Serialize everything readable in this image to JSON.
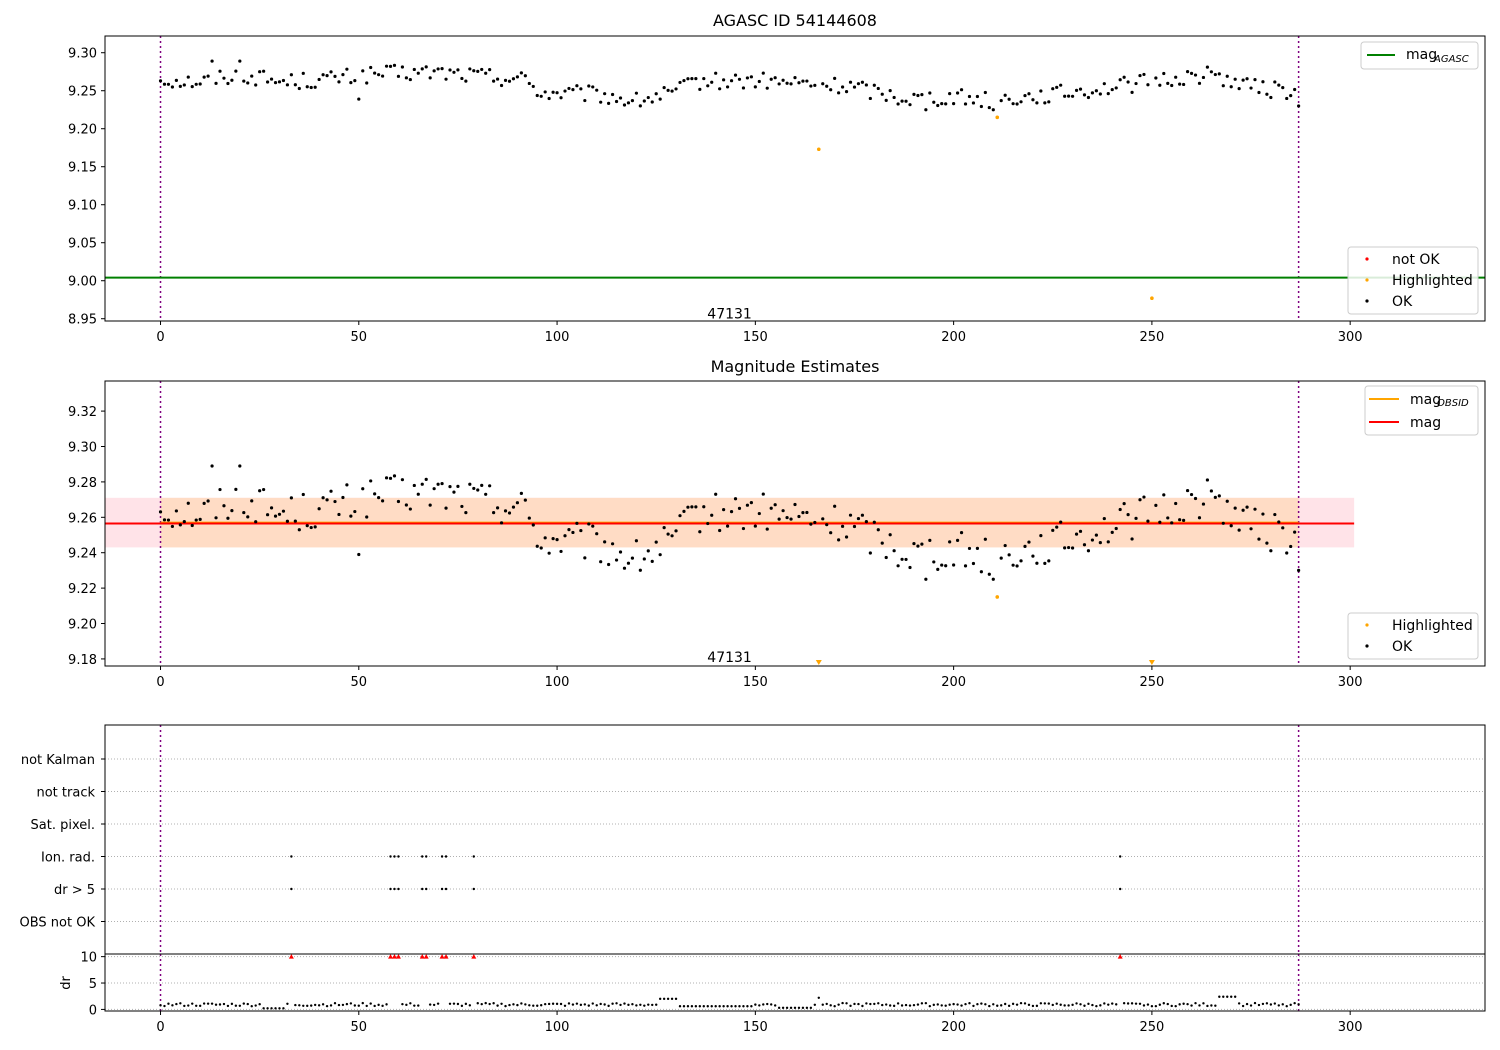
{
  "chart_data": [
    {
      "type": "scatter",
      "title": "AGASC ID 54144608",
      "xlim": [
        -14,
        334
      ],
      "ylim": [
        8.947,
        9.322
      ],
      "xticks": [
        0,
        50,
        100,
        150,
        200,
        250,
        300
      ],
      "yticks": [
        8.95,
        9.0,
        9.05,
        9.1,
        9.15,
        9.2,
        9.25,
        9.3
      ],
      "vlines": [
        0,
        287
      ],
      "hline": {
        "name": "mag",
        "subscript": "AGASC",
        "y": 9.004,
        "color": "#008000"
      },
      "annotation": {
        "text": "47131",
        "x": 143.5,
        "y": 8.957
      },
      "legend_upper": [
        {
          "label": "mag",
          "subscript": "AGASC",
          "color": "#008000",
          "kind": "line"
        }
      ],
      "legend_lower": [
        {
          "label": "not OK",
          "color": "#ff0000",
          "kind": "point"
        },
        {
          "label": "Highlighted",
          "color": "#ffa500",
          "kind": "point"
        },
        {
          "label": "OK",
          "color": "#000000",
          "kind": "point"
        }
      ],
      "series": [
        {
          "name": "OK",
          "color": "#000000"
        },
        {
          "name": "Highlighted",
          "color": "#ffa500",
          "points": [
            [
              166,
              9.173
            ],
            [
              211,
              9.215
            ],
            [
              250,
              8.977
            ]
          ]
        }
      ]
    },
    {
      "type": "scatter",
      "title": "Magnitude Estimates",
      "xlim": [
        -14,
        334
      ],
      "ylim": [
        9.176,
        9.337
      ],
      "xticks": [
        0,
        50,
        100,
        150,
        200,
        250,
        300
      ],
      "yticks": [
        9.18,
        9.2,
        9.22,
        9.24,
        9.26,
        9.28,
        9.3,
        9.32
      ],
      "vlines": [
        0,
        287
      ],
      "band": {
        "x": [
          -14,
          301
        ],
        "y": [
          9.243,
          9.271
        ],
        "color": "#ffc0cb"
      },
      "band_inner": {
        "x": [
          0,
          287
        ],
        "y": [
          9.243,
          9.271
        ],
        "color": "#ffdab9"
      },
      "lines": [
        {
          "name": "mag",
          "subscript": "OBSID",
          "y": 9.257,
          "x": [
            0,
            287
          ],
          "color": "#ffa500"
        },
        {
          "name": "mag",
          "y": 9.2565,
          "x": [
            -14,
            301
          ],
          "color": "#ff0000"
        }
      ],
      "annotation": {
        "text": "47131",
        "x": 143.5,
        "y": 9.181
      },
      "legend_upper": [
        {
          "label": "mag",
          "subscript": "OBSID",
          "color": "#ffa500",
          "kind": "line"
        },
        {
          "label": "mag",
          "color": "#ff0000",
          "kind": "line"
        }
      ],
      "legend_lower": [
        {
          "label": "Highlighted",
          "color": "#ffa500",
          "kind": "point"
        },
        {
          "label": "OK",
          "color": "#000000",
          "kind": "point"
        }
      ],
      "series": [
        {
          "name": "OK",
          "color": "#000000"
        },
        {
          "name": "Highlighted",
          "color": "#ffa500",
          "points": [
            [
              211,
              9.215
            ]
          ],
          "off_axis_markers": [
            166,
            250
          ]
        }
      ]
    },
    {
      "type": "scatter",
      "title": "",
      "xlim": [
        -14,
        334
      ],
      "xticks": [
        0,
        50,
        100,
        150,
        200,
        250,
        300
      ],
      "vlines": [
        0,
        287
      ],
      "flag_rows": [
        "not Kalman",
        "not track",
        "Sat. pixel.",
        "Ion. rad.",
        "dr > 5",
        "OBS not OK"
      ],
      "flags": {
        "Ion. rad.": [
          33,
          58,
          59,
          60,
          66,
          67,
          71,
          72,
          79,
          242
        ],
        "dr > 5": [
          33,
          58,
          59,
          60,
          66,
          67,
          71,
          72,
          79,
          242
        ]
      },
      "dr_panel": {
        "ylabel": "dr",
        "ylim": [
          -0.3,
          10.5
        ],
        "yticks": [
          0,
          5,
          10
        ],
        "clipped_markers": [
          33,
          58,
          59,
          60,
          66,
          67,
          71,
          72,
          79,
          242
        ]
      }
    }
  ],
  "colors": {
    "ok": "#000000",
    "not_ok": "#ff0000",
    "highlighted": "#ffa500",
    "agasc": "#008000",
    "vline": "#800080"
  }
}
